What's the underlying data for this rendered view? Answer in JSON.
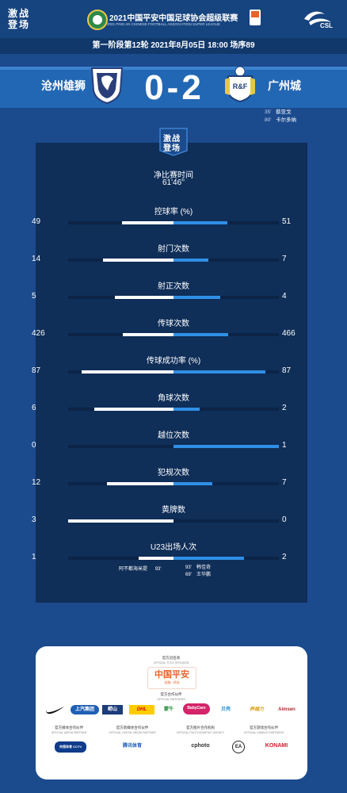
{
  "header": {
    "left_logo": "激战\n登场",
    "league_title": "2021中国平安中国足球协会超级联赛",
    "league_subtitle": "2021 PING AN CHINESE FOOTBALL ASSOCIATION SUPER LEAGUE",
    "right_logo_text": "CSL"
  },
  "match_info": "第一阶段第12轮  2021年8月05日 18:00 场序89",
  "home_team": "沧州雄狮",
  "away_team": "广州城",
  "score": "0-2",
  "away_crest_text": "R&F",
  "away_scorers": [
    {
      "minute": "35'",
      "name": "蔡亚戈"
    },
    {
      "minute": "80'",
      "name": "卡尔多纳"
    }
  ],
  "panel_logo": "激战\n登场",
  "net_time": {
    "label": "净比赛时间",
    "value": "61'46''"
  },
  "stats": [
    {
      "label": "控球率 (%)",
      "home": "49",
      "away": "51",
      "home_ratio": 0.49,
      "away_ratio": 0.51
    },
    {
      "label": "射门次数",
      "home": "14",
      "away": "7",
      "home_ratio": 0.67,
      "away_ratio": 0.33
    },
    {
      "label": "射正次数",
      "home": "5",
      "away": "4",
      "home_ratio": 0.56,
      "away_ratio": 0.44
    },
    {
      "label": "传球次数",
      "home": "426",
      "away": "466",
      "home_ratio": 0.48,
      "away_ratio": 0.52
    },
    {
      "label": "传球成功率 (%)",
      "home": "87",
      "away": "87",
      "home_ratio": 0.87,
      "away_ratio": 0.87
    },
    {
      "label": "角球次数",
      "home": "6",
      "away": "2",
      "home_ratio": 0.75,
      "away_ratio": 0.25
    },
    {
      "label": "越位次数",
      "home": "0",
      "away": "1",
      "home_ratio": 0.0,
      "away_ratio": 1.0
    },
    {
      "label": "犯规次数",
      "home": "12",
      "away": "7",
      "home_ratio": 0.63,
      "away_ratio": 0.37
    },
    {
      "label": "黄牌数",
      "home": "3",
      "away": "0",
      "home_ratio": 1.0,
      "away_ratio": 0.0
    },
    {
      "label": "U23出场人次",
      "home": "1",
      "away": "2",
      "home_ratio": 0.33,
      "away_ratio": 0.67
    }
  ],
  "u23_home": [
    {
      "name": "阿不都海米提",
      "minute": "93'"
    }
  ],
  "u23_away": [
    {
      "minute": "93'",
      "name": "韩佳奇"
    },
    {
      "minute": "69'",
      "name": "王华鹏"
    }
  ],
  "sponsors": {
    "title_cn": "官方冠名商",
    "title_en": "OFFICIAL TITLE SPONSOR",
    "title_sponsor": "中国平安",
    "title_sponsor_sub": "金融 · 科技",
    "partners_cn": "官方合作伙伴",
    "partners_en": "OFFICIAL PARTNERS",
    "partners": [
      "上汽集团",
      "崂山",
      "DHL",
      "蒙牛",
      "BabyCare",
      "贝壳",
      "养福力",
      "Aimsen"
    ],
    "row3": [
      {
        "cn": "官方媒体合作伙伴",
        "en": "OFFICIAL MEDIA PARTNER",
        "logo": "央视体育 CCTV SPORTS"
      },
      {
        "cn": "官方新媒体合作伙伴",
        "en": "OFFICIAL DIGITAL MEDIA PARTNER",
        "logo": "腾讯体育"
      },
      {
        "cn": "官方图片合作机构",
        "en": "OFFICIAL PHOTOGRAPHIC AGENCY",
        "logo": "cphoto"
      },
      {
        "cn": "官方游戏合作伙伴",
        "en": "OFFICIAL GAMING PARTNERS",
        "logo1": "EA",
        "logo2": "KONAMI"
      }
    ]
  },
  "colors": {
    "background": "#1b4a8d",
    "panel": "#0f2e58",
    "home_bar": "#ffffff",
    "away_bar": "#2f8fe6",
    "title_sponsor": "#e9622a"
  }
}
